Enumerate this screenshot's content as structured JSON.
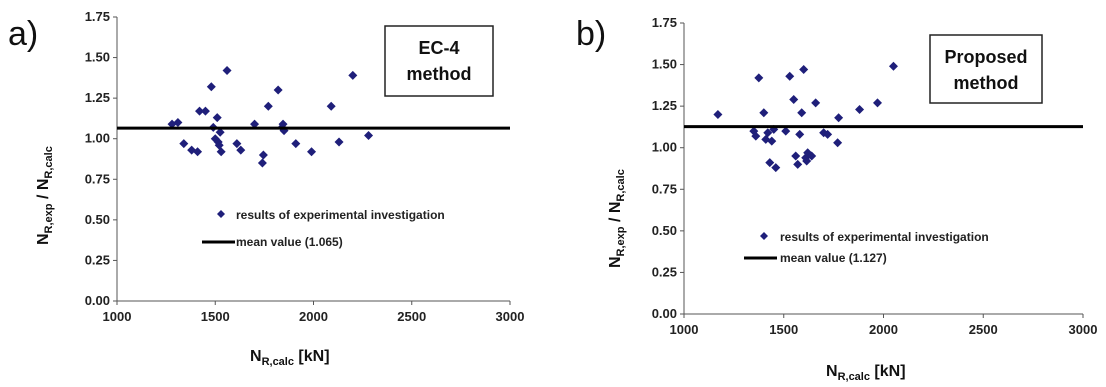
{
  "chart_data": [
    {
      "type": "scatter",
      "panel_label": "a)",
      "box_lines": [
        "EC-4",
        "method"
      ],
      "xlabel_main": "N",
      "xlabel_sub": "R,calc",
      "xlabel_unit": " [kN]",
      "ylabel_parts": {
        "n1": "N",
        "s1": "R,exp",
        "slash": " / ",
        "n2": "N",
        "s2": "R,calc"
      },
      "xlim": [
        1000,
        3000
      ],
      "ylim": [
        0,
        1.75
      ],
      "x_ticks": [
        1000,
        1500,
        2000,
        2500,
        3000
      ],
      "y_ticks": [
        "0.00",
        "0.25",
        "0.50",
        "0.75",
        "1.00",
        "1.25",
        "1.50",
        "1.75"
      ],
      "mean_value": 1.065,
      "series": [
        {
          "name": "results of experimental investigation",
          "marker": "diamond",
          "color": "#1f1f7a",
          "points": [
            [
              1280,
              1.09
            ],
            [
              1310,
              1.1
            ],
            [
              1340,
              0.97
            ],
            [
              1380,
              0.93
            ],
            [
              1410,
              0.92
            ],
            [
              1420,
              1.17
            ],
            [
              1450,
              1.17
            ],
            [
              1480,
              1.32
            ],
            [
              1490,
              1.07
            ],
            [
              1500,
              1.0
            ],
            [
              1510,
              1.13
            ],
            [
              1515,
              0.98
            ],
            [
              1520,
              0.96
            ],
            [
              1525,
              1.04
            ],
            [
              1530,
              0.92
            ],
            [
              1560,
              1.42
            ],
            [
              1610,
              0.97
            ],
            [
              1630,
              0.93
            ],
            [
              1700,
              1.09
            ],
            [
              1740,
              0.85
            ],
            [
              1745,
              0.9
            ],
            [
              1770,
              1.2
            ],
            [
              1820,
              1.3
            ],
            [
              1840,
              1.07
            ],
            [
              1845,
              1.09
            ],
            [
              1850,
              1.05
            ],
            [
              1910,
              0.97
            ],
            [
              1990,
              0.92
            ],
            [
              2090,
              1.2
            ],
            [
              2130,
              0.98
            ],
            [
              2200,
              1.39
            ],
            [
              2280,
              1.02
            ]
          ]
        }
      ],
      "legend": {
        "marker_label": "results of experimental investigation",
        "line_label": "mean value (1.065)"
      }
    },
    {
      "type": "scatter",
      "panel_label": "b)",
      "box_lines": [
        "Proposed",
        "method"
      ],
      "xlabel_main": "N",
      "xlabel_sub": "R,calc",
      "xlabel_unit": " [kN]",
      "ylabel_parts": {
        "n1": "N",
        "s1": "R,exp",
        "slash": " / ",
        "n2": "N",
        "s2": "R,calc"
      },
      "xlim": [
        1000,
        3000
      ],
      "ylim": [
        0,
        1.75
      ],
      "x_ticks": [
        1000,
        1500,
        2000,
        2500,
        3000
      ],
      "y_ticks": [
        "0.00",
        "0.25",
        "0.50",
        "0.75",
        "1.00",
        "1.25",
        "1.50",
        "1.75"
      ],
      "mean_value": 1.127,
      "series": [
        {
          "name": "results of experimental investigation",
          "marker": "diamond",
          "color": "#1f1f7a",
          "points": [
            [
              1170,
              1.2
            ],
            [
              1350,
              1.1
            ],
            [
              1360,
              1.07
            ],
            [
              1375,
              1.42
            ],
            [
              1400,
              1.21
            ],
            [
              1410,
              1.05
            ],
            [
              1420,
              1.09
            ],
            [
              1430,
              0.91
            ],
            [
              1440,
              1.04
            ],
            [
              1450,
              1.11
            ],
            [
              1460,
              0.88
            ],
            [
              1510,
              1.1
            ],
            [
              1530,
              1.43
            ],
            [
              1550,
              1.29
            ],
            [
              1560,
              0.95
            ],
            [
              1570,
              0.9
            ],
            [
              1580,
              1.08
            ],
            [
              1590,
              1.21
            ],
            [
              1600,
              1.47
            ],
            [
              1610,
              0.94
            ],
            [
              1615,
              0.92
            ],
            [
              1620,
              0.97
            ],
            [
              1640,
              0.95
            ],
            [
              1660,
              1.27
            ],
            [
              1700,
              1.09
            ],
            [
              1720,
              1.08
            ],
            [
              1770,
              1.03
            ],
            [
              1775,
              1.18
            ],
            [
              1880,
              1.23
            ],
            [
              1970,
              1.27
            ],
            [
              2050,
              1.49
            ]
          ]
        }
      ],
      "legend": {
        "marker_label": "results of experimental investigation",
        "line_label": "mean value (1.127)"
      }
    }
  ]
}
